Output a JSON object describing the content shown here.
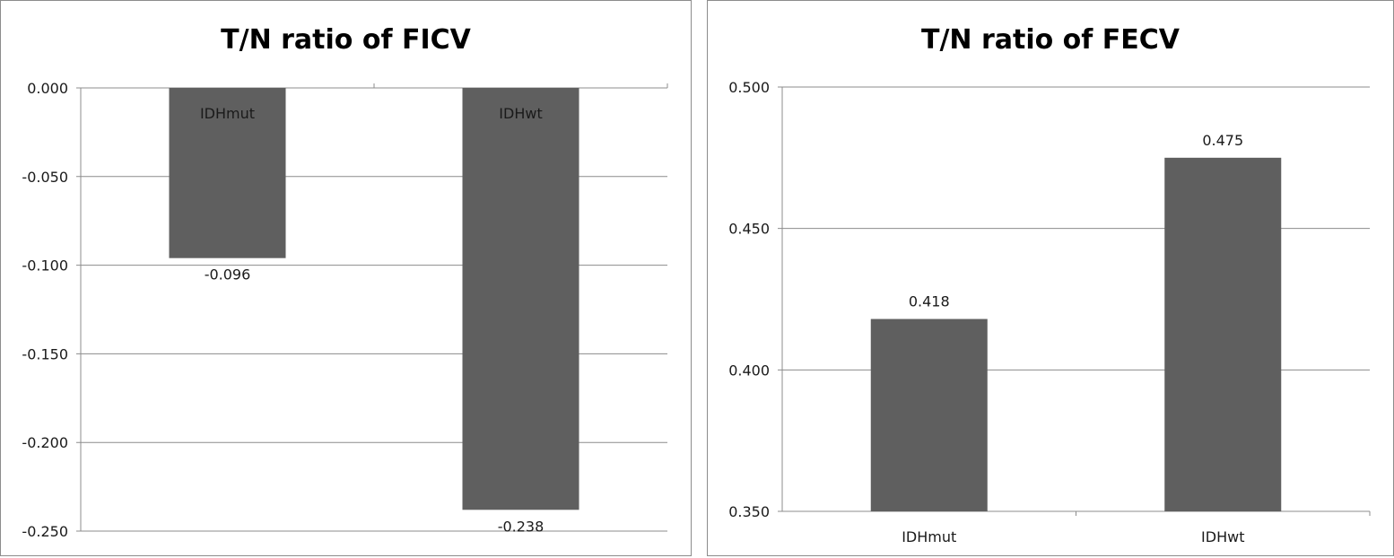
{
  "chart_data": [
    {
      "type": "bar",
      "title": "T/N ratio of FICV",
      "categories": [
        "IDHmut",
        "IDHwt"
      ],
      "values": [
        -0.096,
        -0.238
      ],
      "value_labels": [
        "-0.096",
        "-0.238"
      ],
      "ylim": [
        -0.25,
        0.0
      ],
      "yticks": [
        0.0,
        -0.05,
        -0.1,
        -0.15,
        -0.2,
        -0.25
      ],
      "ytick_labels": [
        "0.000",
        "-0.050",
        "-0.100",
        "-0.150",
        "-0.200",
        "-0.250"
      ],
      "category_label_position": "inside-bar-top",
      "grid": true,
      "legend": "none",
      "bar_color": "#5f5f5f"
    },
    {
      "type": "bar",
      "title": "T/N ratio of FECV",
      "categories": [
        "IDHmut",
        "IDHwt"
      ],
      "values": [
        0.418,
        0.475
      ],
      "value_labels": [
        "0.418",
        "0.475"
      ],
      "ylim": [
        0.35,
        0.5
      ],
      "yticks": [
        0.5,
        0.45,
        0.4,
        0.35
      ],
      "ytick_labels": [
        "0.500",
        "0.450",
        "0.400",
        "0.350"
      ],
      "category_label_position": "below-axis",
      "grid": true,
      "legend": "none",
      "bar_color": "#5f5f5f"
    }
  ]
}
